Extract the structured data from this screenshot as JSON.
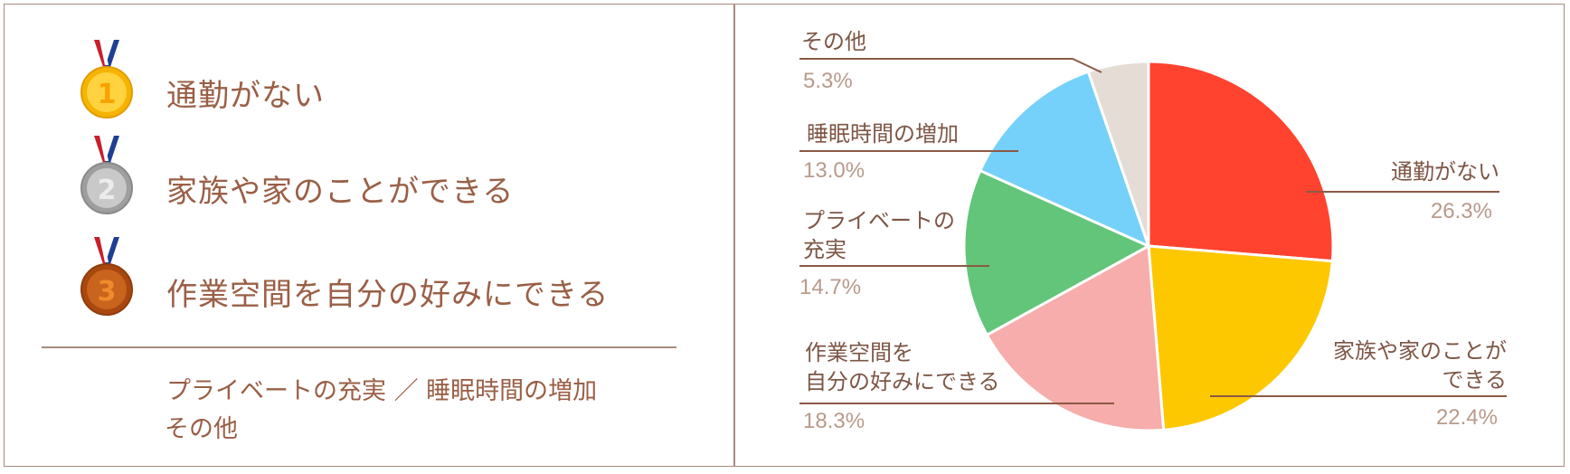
{
  "ranking": {
    "items": [
      {
        "rank": "1",
        "label": "通勤がない",
        "medal_color": "#f5b400"
      },
      {
        "rank": "2",
        "label": "家族や家のことができる",
        "medal_color": "#a5a5a5"
      },
      {
        "rank": "3",
        "label": "作業空間を自分の好みにできる",
        "medal_color": "#b5531b"
      }
    ],
    "others_line1": "プライベートの充実 ／ 睡眠時間の増加",
    "others_line2": "その他"
  },
  "chart_data": {
    "type": "pie",
    "categories": [
      "通勤がない",
      "家族や家のことができる",
      "作業空間を自分の好みにできる",
      "プライベートの充実",
      "睡眠時間の増加",
      "その他"
    ],
    "values": [
      26.3,
      22.4,
      18.3,
      14.7,
      13.0,
      5.3
    ],
    "value_labels": [
      "26.3%",
      "22.4%",
      "18.3%",
      "14.7%",
      "13.0%",
      "5.3%"
    ],
    "colors": [
      "#ff432f",
      "#fdc800",
      "#f6adab",
      "#62c57a",
      "#75d1f9",
      "#e5dcd6"
    ],
    "start": "12 o'clock",
    "direction": "clockwise",
    "labels": {
      "commute": {
        "line1": "通勤がない",
        "pct": "26.3%"
      },
      "family": {
        "line1": "家族や家のことが",
        "line2": "できる",
        "pct": "22.4%"
      },
      "workspace": {
        "line1": "作業空間を",
        "line2": "自分の好みにできる",
        "pct": "18.3%"
      },
      "private": {
        "line1": "プライベートの",
        "line2": "充実",
        "pct": "14.7%"
      },
      "sleep": {
        "line1": "睡眠時間の増加",
        "pct": "13.0%"
      },
      "other": {
        "line1": "その他",
        "pct": "5.3%"
      }
    }
  }
}
